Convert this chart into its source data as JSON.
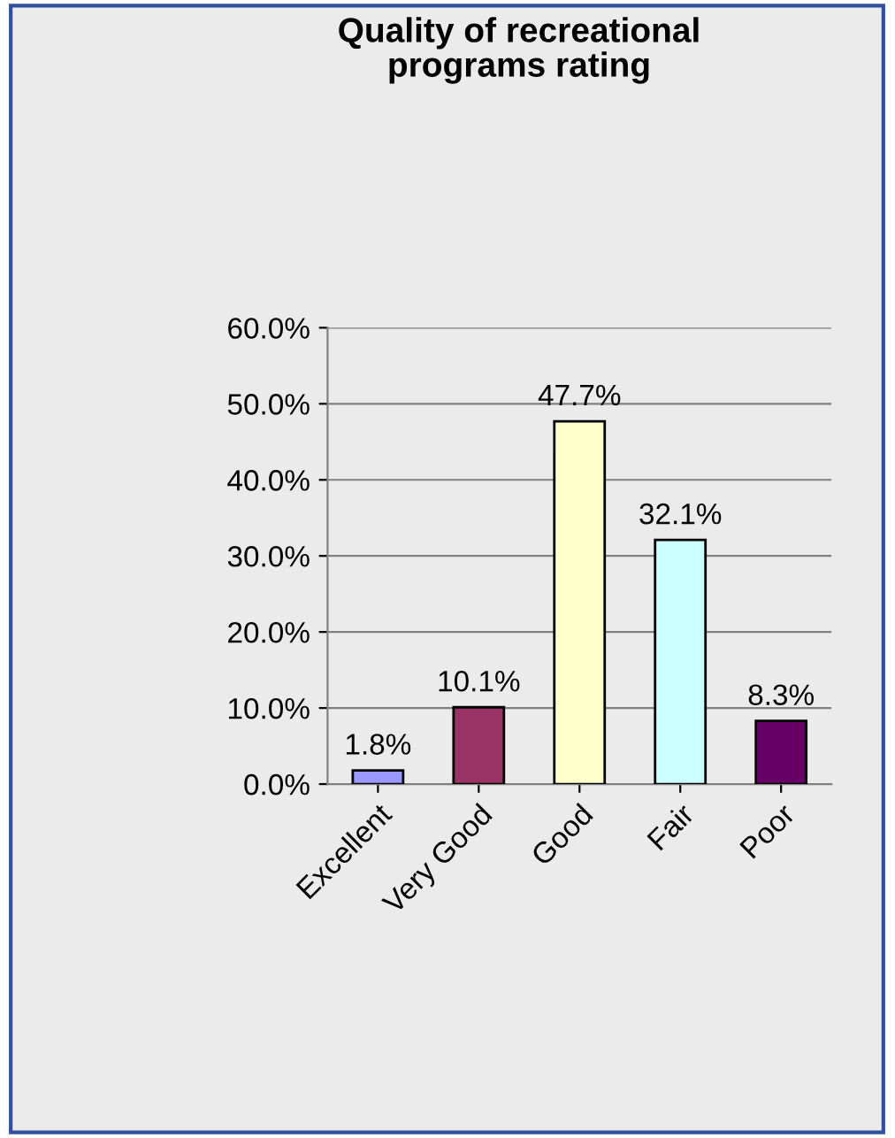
{
  "chart_data": {
    "type": "bar",
    "title": "Quality of recreational\nprograms rating",
    "categories": [
      "Excellent",
      "Very Good",
      "Good",
      "Fair",
      "Poor"
    ],
    "values": [
      1.8,
      10.1,
      47.7,
      32.1,
      8.3
    ],
    "colors": [
      "#9999ff",
      "#993366",
      "#ffffcc",
      "#ccffff",
      "#660066"
    ],
    "value_labels": [
      "1.8%",
      "10.1%",
      "47.7%",
      "32.1%",
      "8.3%"
    ],
    "ylim": [
      0,
      60
    ],
    "yticks": [
      {
        "value": 0,
        "label": "0.0%"
      },
      {
        "value": 10,
        "label": "10.0%"
      },
      {
        "value": 20,
        "label": "20.0%"
      },
      {
        "value": 30,
        "label": "30.0%"
      },
      {
        "value": 40,
        "label": "40.0%"
      },
      {
        "value": 50,
        "label": "50.0%"
      },
      {
        "value": 60,
        "label": "60.0%"
      }
    ],
    "grid": "y",
    "legend": false
  }
}
